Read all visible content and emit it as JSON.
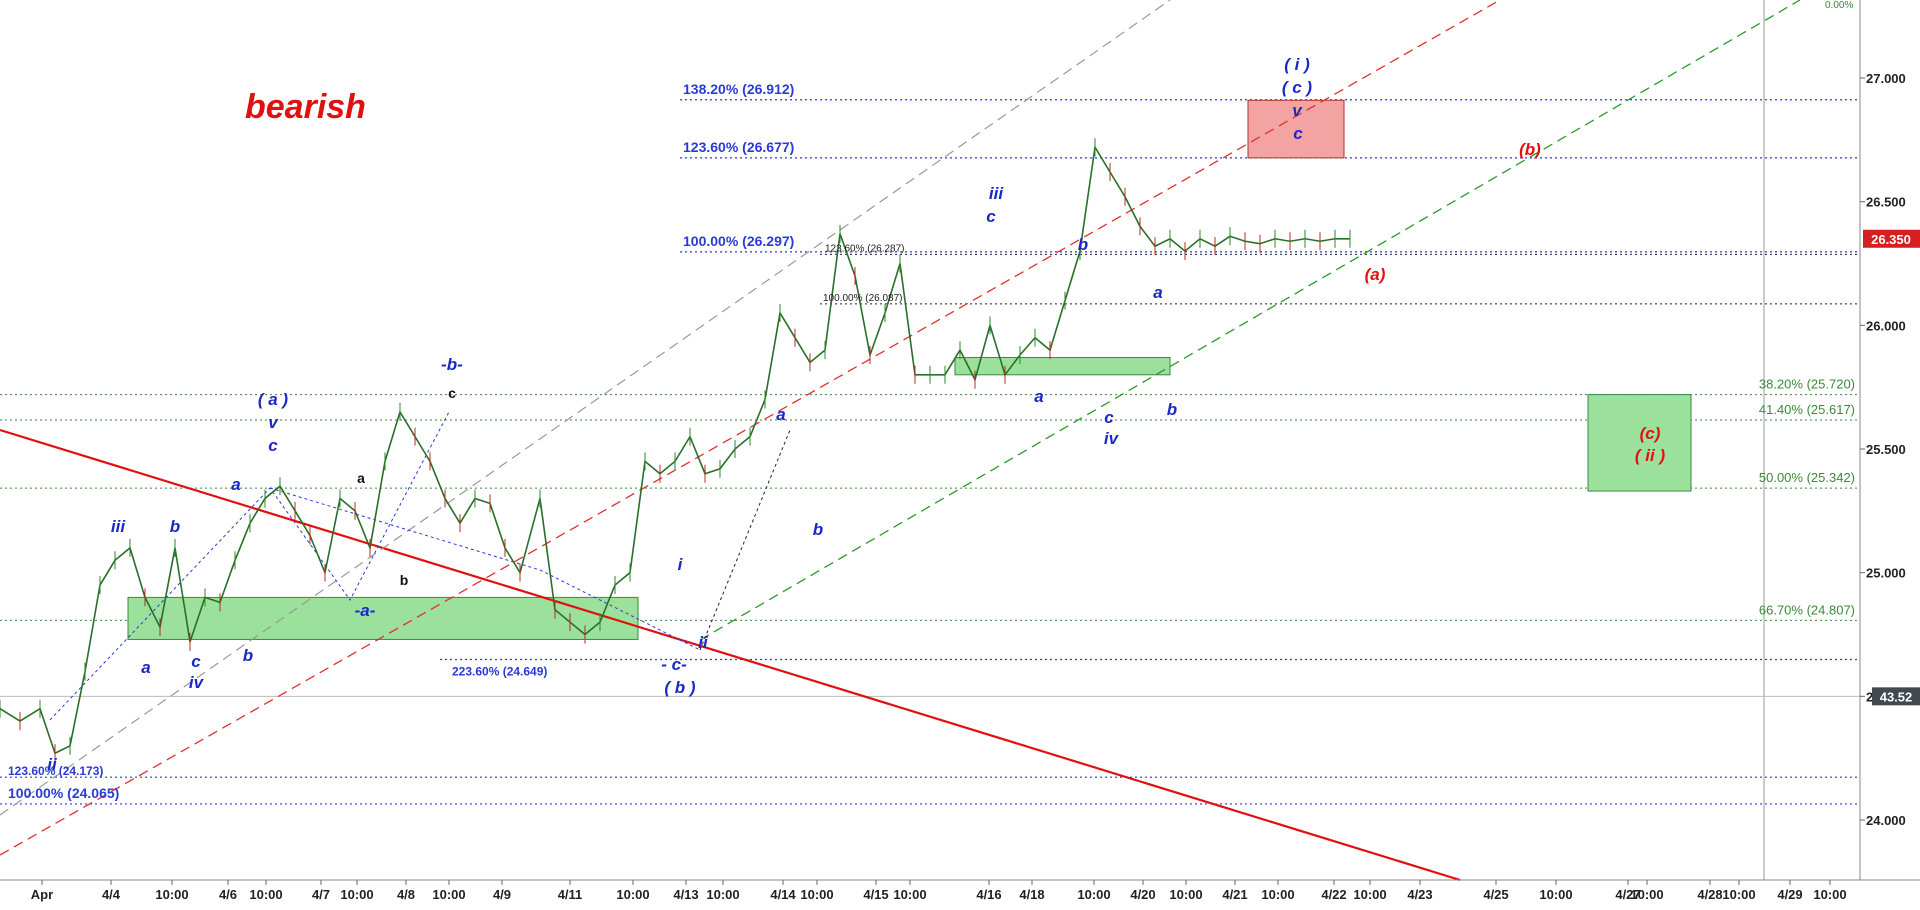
{
  "chart_data": {
    "type": "line",
    "title": "bearish",
    "colors": {
      "background": "#ffffff",
      "price_line": "#2a6e2a",
      "candle_up": "#2a8a2a",
      "candle_down": "#b03020",
      "blue_label": "#1a28c8",
      "red_label": "#e01010",
      "fib_blue": "#2a3ad8",
      "fib_green": "#3a8a3a",
      "green_zone": "#9be09b",
      "red_zone": "#f4a3a3",
      "price_badge": "#d62020",
      "gray_badge": "#404a50"
    },
    "ylim": [
      23.75,
      27.35
    ],
    "y_ticks": [
      "24.000",
      "24.500",
      "25.000",
      "25.500",
      "26.000",
      "26.500",
      "27.000"
    ],
    "x_ticks": [
      "Apr",
      "4/4",
      "10:00",
      "4/6",
      "10:00",
      "4/7",
      "10:00",
      "4/8",
      "10:00",
      "4/9",
      "4/11",
      "10:00",
      "4/13",
      "10:00",
      "4/14",
      "10:00",
      "4/15",
      "10:00",
      "4/16",
      "4/18",
      "10:00",
      "4/20",
      "10:00",
      "4/21",
      "10:00",
      "4/22",
      "10:00",
      "4/23",
      "4/25",
      "10:00",
      "4/27",
      "10:00",
      "4/28",
      "10:00",
      "4/29",
      "10:00"
    ],
    "x_range": [
      0,
      1900
    ],
    "price_series": {
      "name": "price",
      "x": [
        0,
        20,
        40,
        55,
        70,
        85,
        100,
        115,
        130,
        145,
        160,
        175,
        190,
        205,
        220,
        235,
        250,
        265,
        280,
        295,
        310,
        325,
        340,
        355,
        370,
        385,
        400,
        415,
        430,
        445,
        460,
        475,
        490,
        505,
        520,
        540,
        555,
        570,
        585,
        600,
        615,
        630,
        645,
        660,
        675,
        690,
        705,
        720,
        735,
        750,
        765,
        780,
        795,
        810,
        825,
        840,
        855,
        870,
        885,
        900,
        915,
        930,
        945,
        960,
        975,
        990,
        1005,
        1020,
        1035,
        1050,
        1065,
        1080,
        1095,
        1110,
        1125,
        1140,
        1155,
        1170,
        1185,
        1200,
        1215,
        1230,
        1245,
        1260,
        1275,
        1290,
        1305,
        1320,
        1335,
        1350
      ],
      "y": [
        24.45,
        24.4,
        24.45,
        24.27,
        24.3,
        24.6,
        24.95,
        25.05,
        25.1,
        24.9,
        24.78,
        25.1,
        24.72,
        24.9,
        24.88,
        25.05,
        25.2,
        25.3,
        25.35,
        25.25,
        25.15,
        25.0,
        25.3,
        25.25,
        25.1,
        25.45,
        25.65,
        25.55,
        25.45,
        25.3,
        25.2,
        25.3,
        25.28,
        25.1,
        25.0,
        25.3,
        24.85,
        24.8,
        24.75,
        24.8,
        24.95,
        25.0,
        25.45,
        25.4,
        25.45,
        25.55,
        25.4,
        25.42,
        25.5,
        25.55,
        25.7,
        26.05,
        25.95,
        25.85,
        25.9,
        26.37,
        26.2,
        25.88,
        26.05,
        26.25,
        25.8,
        25.8,
        25.8,
        25.9,
        25.78,
        26.0,
        25.8,
        25.88,
        25.95,
        25.9,
        26.1,
        26.3,
        26.72,
        26.62,
        26.52,
        26.4,
        26.32,
        26.35,
        26.3,
        26.35,
        26.32,
        26.36,
        26.34,
        26.33,
        26.35,
        26.34,
        26.35,
        26.34,
        26.35,
        26.35
      ]
    },
    "current_price": "26.350",
    "secondary_badge": "43.52",
    "fib_levels_blue": [
      {
        "label": "138.20% (26.912)",
        "value": 26.912
      },
      {
        "label": "123.60% (26.677)",
        "value": 26.677
      },
      {
        "label": "100.00% (26.297)",
        "value": 26.297
      },
      {
        "label": "223.60% (24.649)",
        "value": 24.649
      },
      {
        "label": "123.60% (24.173)",
        "value": 24.173
      },
      {
        "label": "100.00% (24.065)",
        "value": 24.065
      }
    ],
    "fib_levels_small": [
      {
        "label": "123.60% (26.287)",
        "value": 26.287
      },
      {
        "label": "100.00% (26.087)",
        "value": 26.087
      }
    ],
    "fib_levels_green": [
      {
        "label": "38.20% (25.720)",
        "value": 25.72
      },
      {
        "label": "41.40% (25.617)",
        "value": 25.617
      },
      {
        "label": "50.00% (25.342)",
        "value": 25.342
      },
      {
        "label": "66.70% (24.807)",
        "value": 24.807
      }
    ],
    "top_right_label": "0.00%",
    "wave_labels_blue": [
      "iii",
      "b",
      "a",
      "c",
      "iv",
      "b",
      "( a )",
      "v",
      "c",
      "a",
      "-a-",
      "-b-",
      "i",
      "ii",
      "- c-",
      "( b )",
      "a",
      "b",
      "iii",
      "c",
      "b",
      "a",
      "c",
      "iv",
      "a",
      "b",
      "( i )",
      "( c )",
      "v",
      "c",
      "ii"
    ],
    "wave_labels_black": [
      "c",
      "a",
      "b"
    ],
    "wave_labels_red": [
      "(b)",
      "(a)",
      "(c)",
      "( ii )"
    ]
  }
}
